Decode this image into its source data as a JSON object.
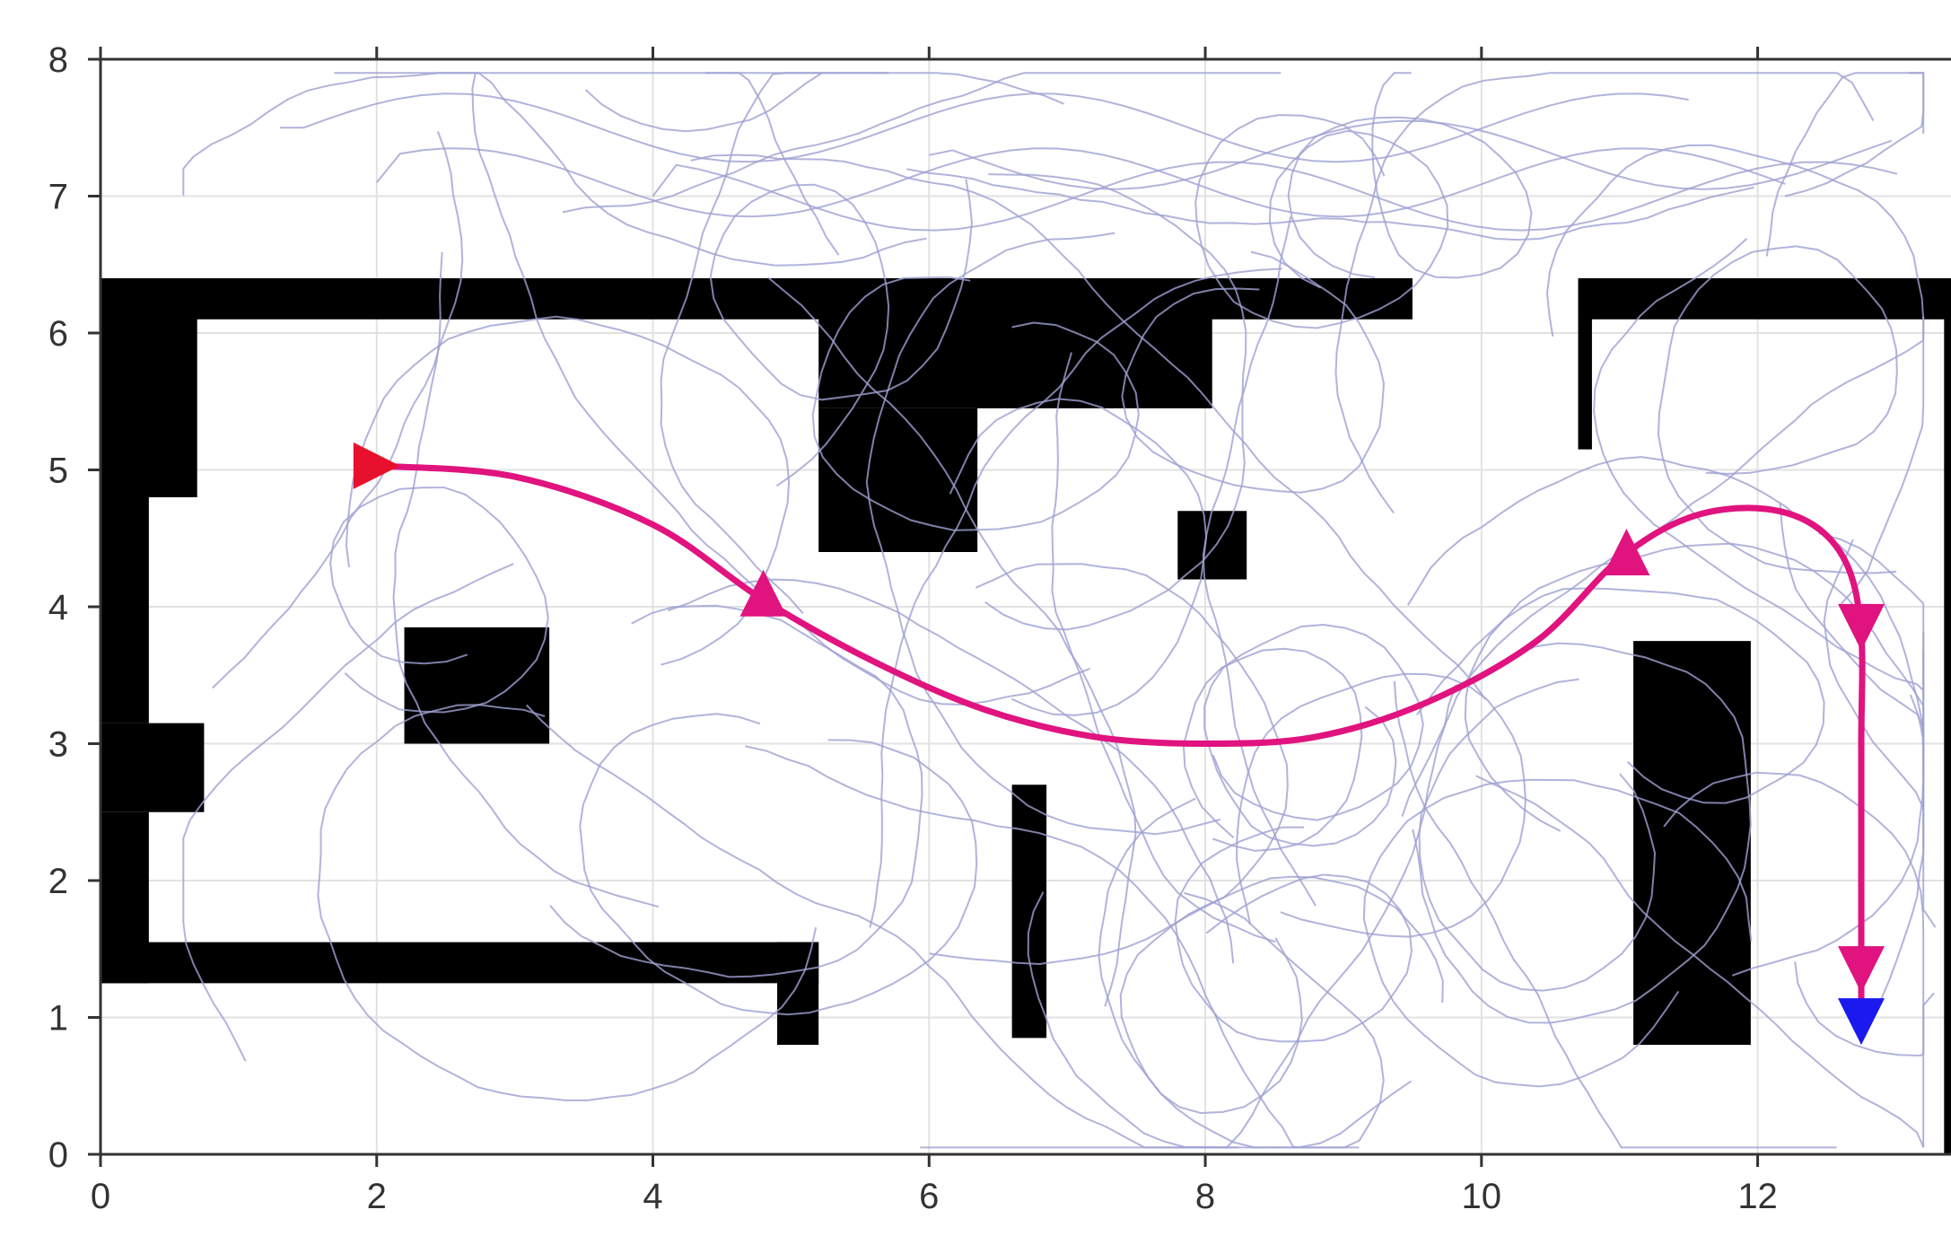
{
  "chart_data": {
    "type": "scatter",
    "title": "",
    "xlabel": "",
    "ylabel": "",
    "xlim": [
      0,
      13.4
    ],
    "ylim": [
      0,
      8
    ],
    "grid": true,
    "x_ticks": [
      "0",
      "2",
      "4",
      "6",
      "8",
      "10",
      "12"
    ],
    "y_ticks": [
      "0",
      "1",
      "2",
      "3",
      "4",
      "5",
      "6",
      "7",
      "8"
    ],
    "obstacles": [
      {
        "name": "top-wall-left",
        "x": [
          0,
          9.5
        ],
        "y": [
          6.1,
          6.4
        ]
      },
      {
        "name": "top-wall-right",
        "x": [
          10.7,
          13.4
        ],
        "y": [
          6.1,
          6.4
        ]
      },
      {
        "name": "right-room-inner-wall",
        "x": [
          10.7,
          10.8
        ],
        "y": [
          5.15,
          6.4
        ]
      },
      {
        "name": "left-wall-upper",
        "x": [
          0,
          0.7
        ],
        "y": [
          4.8,
          6.4
        ]
      },
      {
        "name": "left-wall-middle",
        "x": [
          0,
          0.35
        ],
        "y": [
          3.15,
          4.8
        ]
      },
      {
        "name": "left-bump",
        "x": [
          0,
          0.75
        ],
        "y": [
          2.5,
          3.15
        ]
      },
      {
        "name": "left-wall-lower",
        "x": [
          0,
          0.35
        ],
        "y": [
          1.25,
          2.5
        ]
      },
      {
        "name": "bottom-wall",
        "x": [
          0,
          5.2
        ],
        "y": [
          1.25,
          1.55
        ]
      },
      {
        "name": "bottom-wall-post",
        "x": [
          4.9,
          5.2
        ],
        "y": [
          0.8,
          1.55
        ]
      },
      {
        "name": "upper-middle-block",
        "x": [
          5.2,
          8.05
        ],
        "y": [
          5.45,
          6.4
        ]
      },
      {
        "name": "upper-middle-drop",
        "x": [
          5.2,
          6.35
        ],
        "y": [
          4.4,
          5.45
        ]
      },
      {
        "name": "left-square",
        "x": [
          2.2,
          3.25
        ],
        "y": [
          3.0,
          3.85
        ]
      },
      {
        "name": "small-square",
        "x": [
          7.8,
          8.3
        ],
        "y": [
          4.2,
          4.7
        ]
      },
      {
        "name": "thin-pillar",
        "x": [
          6.6,
          6.85
        ],
        "y": [
          0.85,
          2.7
        ]
      },
      {
        "name": "right-pillar",
        "x": [
          11.1,
          11.95
        ],
        "y": [
          0.8,
          3.75
        ]
      },
      {
        "name": "right-border",
        "x": [
          13.35,
          13.4
        ],
        "y": [
          0,
          6.4
        ]
      }
    ],
    "series": [
      {
        "role": "sampled-trajectories",
        "color": "#9fa0d2",
        "count": 60
      },
      {
        "role": "optimal-path",
        "color": "#e0137f",
        "x": [
          2.0,
          3.0,
          4.0,
          4.8,
          5.6,
          6.4,
          7.2,
          8.0,
          8.8,
          9.6,
          10.4,
          11.0,
          11.5,
          12.0,
          12.4,
          12.65,
          12.75,
          12.75,
          12.75,
          12.75,
          12.75
        ],
        "y": [
          5.03,
          4.95,
          4.6,
          4.05,
          3.6,
          3.25,
          3.05,
          3.0,
          3.05,
          3.3,
          3.75,
          4.35,
          4.65,
          4.72,
          4.6,
          4.3,
          3.8,
          3.0,
          2.0,
          1.3,
          1.0
        ]
      }
    ],
    "markers": [
      {
        "role": "start",
        "shape": "triangle-right",
        "color": "#e8112d",
        "x": 2.0,
        "y": 5.03
      },
      {
        "role": "waypoint",
        "shape": "triangle-up",
        "color": "#e0137f",
        "x": 4.8,
        "y": 4.1
      },
      {
        "role": "waypoint",
        "shape": "triangle-up",
        "color": "#e0137f",
        "x": 11.05,
        "y": 4.4
      },
      {
        "role": "waypoint",
        "shape": "triangle-down",
        "color": "#e0137f",
        "x": 12.75,
        "y": 3.85
      },
      {
        "role": "waypoint",
        "shape": "triangle-down",
        "color": "#e0137f",
        "x": 12.75,
        "y": 1.35
      },
      {
        "role": "goal",
        "shape": "triangle-down",
        "color": "#1a1aee",
        "x": 12.75,
        "y": 0.97
      }
    ]
  }
}
